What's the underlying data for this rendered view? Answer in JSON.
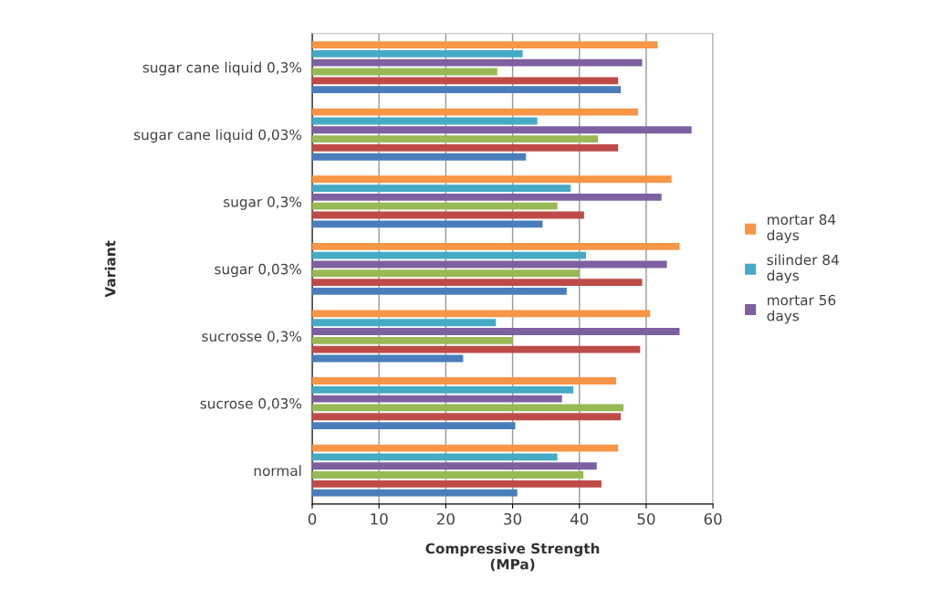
{
  "chart_data": {
    "type": "bar",
    "orientation": "horizontal",
    "xlabel": "Compressive Strength\n(MPa)",
    "ylabel": "Variant",
    "categories": [
      "sugar cane liquid 0,3%",
      "sugar cane liquid 0,03%",
      "sugar 0,3%",
      "sugar 0,03%",
      "sucrosse 0,3%",
      "sucrose 0,03%",
      "normal"
    ],
    "series": [
      {
        "color": "#4a7ebb",
        "values": [
          46.2,
          32.0,
          34.5,
          38.1,
          22.6,
          30.4,
          30.7
        ]
      },
      {
        "color": "#be4b48",
        "values": [
          45.8,
          45.8,
          40.7,
          49.4,
          49.1,
          46.2,
          43.3
        ]
      },
      {
        "color": "#98b954",
        "values": [
          27.7,
          42.8,
          36.7,
          39.9,
          30.0,
          46.6,
          40.6
        ]
      },
      {
        "name": "mortar 56 days",
        "color": "#7d60a0",
        "values": [
          49.4,
          56.8,
          52.3,
          53.1,
          55.0,
          37.4,
          42.6
        ]
      },
      {
        "name": "silinder 84 days",
        "color": "#46aac5",
        "values": [
          31.5,
          33.7,
          38.7,
          41.0,
          27.5,
          39.1,
          36.7
        ]
      },
      {
        "name": "mortar 84 days",
        "color": "#f79646",
        "values": [
          51.7,
          48.8,
          53.8,
          55.0,
          50.6,
          45.5,
          45.8
        ]
      }
    ],
    "xlim": [
      0,
      60
    ],
    "xticks": [
      0,
      10,
      20,
      30,
      40,
      50,
      60
    ],
    "grid": "x",
    "legend": "right"
  }
}
